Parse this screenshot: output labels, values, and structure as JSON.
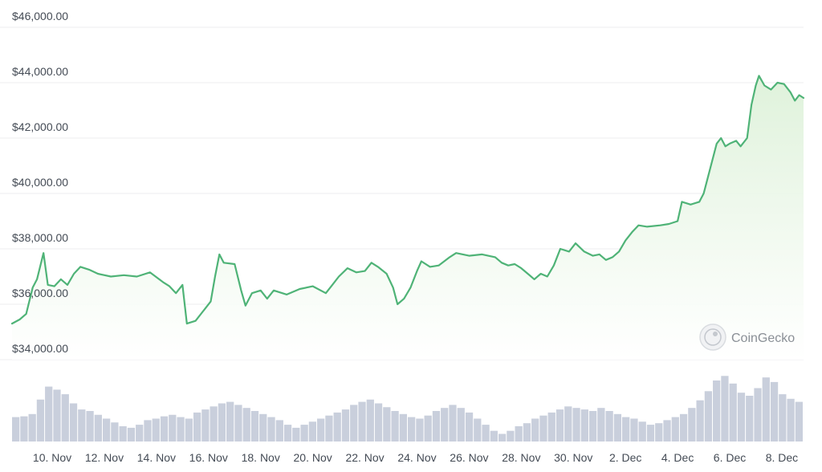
{
  "chart_data": {
    "type": "area",
    "title": "",
    "xlabel": "",
    "ylabel": "",
    "ylim": [
      34000,
      46000
    ],
    "y_ticks": [
      "$34,000.00",
      "$36,000.00",
      "$38,000.00",
      "$40,000.00",
      "$42,000.00",
      "$44,000.00",
      "$46,000.00"
    ],
    "y_tick_values": [
      34000,
      36000,
      38000,
      40000,
      42000,
      44000,
      46000
    ],
    "x_ticks": [
      "10. Nov",
      "12. Nov",
      "14. Nov",
      "16. Nov",
      "18. Nov",
      "20. Nov",
      "22. Nov",
      "24. Nov",
      "26. Nov",
      "28. Nov",
      "30. Nov",
      "2. Dec",
      "4. Dec",
      "6. Dec",
      "8. Dec"
    ],
    "x_start": "2023-11-08T11:00",
    "x_end": "2023-12-08T20:00",
    "grid": true,
    "colors": {
      "line": "#4fb377",
      "area_top": "#dff2db",
      "area_bottom": "#ffffff",
      "volume": "#c9cfdc",
      "grid": "#ecedef"
    },
    "series": [
      {
        "values": [
          [
            "2023-11-08T11:00",
            35300
          ],
          [
            "2023-11-08T18:00",
            35450
          ],
          [
            "2023-11-09T00:00",
            35650
          ],
          [
            "2023-11-09T06:00",
            36600
          ],
          [
            "2023-11-09T10:00",
            36900
          ],
          [
            "2023-11-09T16:00",
            37850
          ],
          [
            "2023-11-09T20:00",
            36700
          ],
          [
            "2023-11-10T02:00",
            36650
          ],
          [
            "2023-11-10T08:00",
            36900
          ],
          [
            "2023-11-10T14:00",
            36700
          ],
          [
            "2023-11-10T20:00",
            37100
          ],
          [
            "2023-11-11T02:00",
            37350
          ],
          [
            "2023-11-11T10:00",
            37250
          ],
          [
            "2023-11-11T18:00",
            37100
          ],
          [
            "2023-11-12T06:00",
            37000
          ],
          [
            "2023-11-12T18:00",
            37050
          ],
          [
            "2023-11-13T06:00",
            37000
          ],
          [
            "2023-11-13T18:00",
            37150
          ],
          [
            "2023-11-14T06:00",
            36800
          ],
          [
            "2023-11-14T12:00",
            36650
          ],
          [
            "2023-11-14T18:00",
            36400
          ],
          [
            "2023-11-15T00:00",
            36700
          ],
          [
            "2023-11-15T04:00",
            35300
          ],
          [
            "2023-11-15T12:00",
            35400
          ],
          [
            "2023-11-15T20:00",
            35800
          ],
          [
            "2023-11-16T02:00",
            36100
          ],
          [
            "2023-11-16T06:00",
            37000
          ],
          [
            "2023-11-16T10:00",
            37800
          ],
          [
            "2023-11-16T14:00",
            37500
          ],
          [
            "2023-11-17T00:00",
            37450
          ],
          [
            "2023-11-17T06:00",
            36500
          ],
          [
            "2023-11-17T10:00",
            35950
          ],
          [
            "2023-11-17T16:00",
            36400
          ],
          [
            "2023-11-18T00:00",
            36500
          ],
          [
            "2023-11-18T06:00",
            36200
          ],
          [
            "2023-11-18T12:00",
            36500
          ],
          [
            "2023-11-19T00:00",
            36350
          ],
          [
            "2023-11-19T12:00",
            36550
          ],
          [
            "2023-11-20T00:00",
            36650
          ],
          [
            "2023-11-20T12:00",
            36400
          ],
          [
            "2023-11-20T18:00",
            36700
          ],
          [
            "2023-11-21T00:00",
            37000
          ],
          [
            "2023-11-21T08:00",
            37300
          ],
          [
            "2023-11-21T16:00",
            37150
          ],
          [
            "2023-11-22T00:00",
            37200
          ],
          [
            "2023-11-22T06:00",
            37500
          ],
          [
            "2023-11-22T12:00",
            37350
          ],
          [
            "2023-11-22T20:00",
            37100
          ],
          [
            "2023-11-23T02:00",
            36600
          ],
          [
            "2023-11-23T06:00",
            36000
          ],
          [
            "2023-11-23T12:00",
            36200
          ],
          [
            "2023-11-23T18:00",
            36600
          ],
          [
            "2023-11-24T00:00",
            37200
          ],
          [
            "2023-11-24T04:00",
            37550
          ],
          [
            "2023-11-24T12:00",
            37350
          ],
          [
            "2023-11-24T20:00",
            37400
          ],
          [
            "2023-11-25T06:00",
            37700
          ],
          [
            "2023-11-25T12:00",
            37850
          ],
          [
            "2023-11-26T00:00",
            37750
          ],
          [
            "2023-11-26T12:00",
            37800
          ],
          [
            "2023-11-27T00:00",
            37700
          ],
          [
            "2023-11-27T06:00",
            37500
          ],
          [
            "2023-11-27T12:00",
            37400
          ],
          [
            "2023-11-27T18:00",
            37450
          ],
          [
            "2023-11-28T00:00",
            37300
          ],
          [
            "2023-11-28T06:00",
            37100
          ],
          [
            "2023-11-28T12:00",
            36900
          ],
          [
            "2023-11-28T18:00",
            37100
          ],
          [
            "2023-11-29T00:00",
            37000
          ],
          [
            "2023-11-29T06:00",
            37400
          ],
          [
            "2023-11-29T12:00",
            38000
          ],
          [
            "2023-11-29T20:00",
            37900
          ],
          [
            "2023-11-30T02:00",
            38200
          ],
          [
            "2023-11-30T10:00",
            37900
          ],
          [
            "2023-11-30T18:00",
            37750
          ],
          [
            "2023-12-01T00:00",
            37800
          ],
          [
            "2023-12-01T06:00",
            37600
          ],
          [
            "2023-12-01T12:00",
            37700
          ],
          [
            "2023-12-01T18:00",
            37900
          ],
          [
            "2023-12-02T00:00",
            38300
          ],
          [
            "2023-12-02T06:00",
            38600
          ],
          [
            "2023-12-02T12:00",
            38850
          ],
          [
            "2023-12-02T20:00",
            38800
          ],
          [
            "2023-12-03T08:00",
            38850
          ],
          [
            "2023-12-03T16:00",
            38900
          ],
          [
            "2023-12-04T00:00",
            39000
          ],
          [
            "2023-12-04T04:00",
            39700
          ],
          [
            "2023-12-04T12:00",
            39600
          ],
          [
            "2023-12-04T20:00",
            39700
          ],
          [
            "2023-12-05T00:00",
            40000
          ],
          [
            "2023-12-05T04:00",
            40600
          ],
          [
            "2023-12-05T08:00",
            41200
          ],
          [
            "2023-12-05T12:00",
            41800
          ],
          [
            "2023-12-05T16:00",
            42000
          ],
          [
            "2023-12-05T20:00",
            41700
          ],
          [
            "2023-12-06T00:00",
            41800
          ],
          [
            "2023-12-06T06:00",
            41900
          ],
          [
            "2023-12-06T10:00",
            41700
          ],
          [
            "2023-12-06T16:00",
            42000
          ],
          [
            "2023-12-06T20:00",
            43200
          ],
          [
            "2023-12-07T00:00",
            43900
          ],
          [
            "2023-12-07T03:00",
            44250
          ],
          [
            "2023-12-07T08:00",
            43900
          ],
          [
            "2023-12-07T14:00",
            43750
          ],
          [
            "2023-12-07T20:00",
            44000
          ],
          [
            "2023-12-08T02:00",
            43950
          ],
          [
            "2023-12-08T08:00",
            43650
          ],
          [
            "2023-12-08T12:00",
            43350
          ],
          [
            "2023-12-08T16:00",
            43550
          ],
          [
            "2023-12-08T20:00",
            43450
          ]
        ]
      },
      {
        "values": [
          0.32,
          0.33,
          0.36,
          0.55,
          0.72,
          0.68,
          0.62,
          0.5,
          0.42,
          0.4,
          0.35,
          0.3,
          0.25,
          0.2,
          0.18,
          0.22,
          0.28,
          0.3,
          0.33,
          0.35,
          0.32,
          0.3,
          0.38,
          0.42,
          0.46,
          0.5,
          0.52,
          0.48,
          0.44,
          0.4,
          0.36,
          0.32,
          0.28,
          0.22,
          0.18,
          0.22,
          0.26,
          0.3,
          0.34,
          0.38,
          0.42,
          0.48,
          0.52,
          0.55,
          0.5,
          0.45,
          0.4,
          0.36,
          0.32,
          0.3,
          0.34,
          0.4,
          0.44,
          0.48,
          0.44,
          0.38,
          0.3,
          0.22,
          0.14,
          0.1,
          0.14,
          0.2,
          0.24,
          0.3,
          0.34,
          0.38,
          0.42,
          0.46,
          0.44,
          0.42,
          0.4,
          0.44,
          0.4,
          0.36,
          0.32,
          0.3,
          0.26,
          0.22,
          0.24,
          0.28,
          0.32,
          0.36,
          0.44,
          0.54,
          0.66,
          0.8,
          0.86,
          0.76,
          0.64,
          0.6,
          0.7,
          0.84,
          0.78,
          0.62,
          0.56,
          0.52
        ]
      }
    ],
    "watermark": "CoinGecko"
  }
}
